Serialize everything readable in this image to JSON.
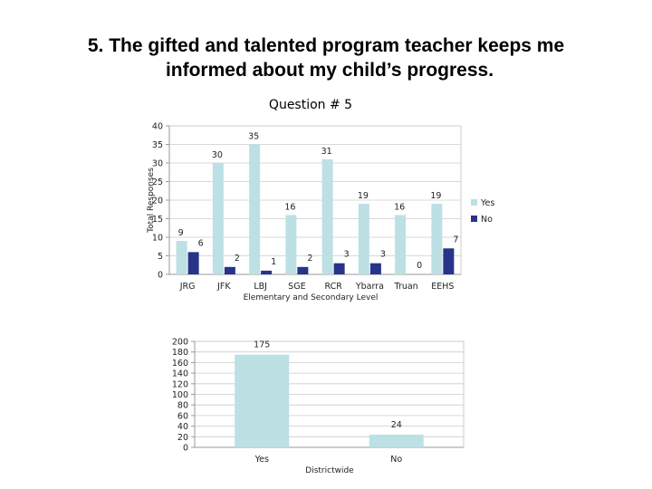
{
  "slide": {
    "title_line1": "5. The gifted and talented program teacher keeps me",
    "title_line2": "informed about my child’s progress."
  },
  "colors": {
    "yes": "#bce0e4",
    "no": "#28338a",
    "axis": "#999999",
    "grid": "#cccccc"
  },
  "chart_data": [
    {
      "type": "bar",
      "title": "Question # 5",
      "xlabel": "Elementary and Secondary Level",
      "ylabel": "Total Responses",
      "categories": [
        "JRG",
        "JFK",
        "LBJ",
        "SGE",
        "RCR",
        "Ybarra",
        "Truan",
        "EEHS"
      ],
      "series": [
        {
          "name": "Yes",
          "values": [
            9,
            30,
            35,
            16,
            31,
            19,
            16,
            19
          ]
        },
        {
          "name": "No",
          "values": [
            6,
            2,
            1,
            2,
            3,
            3,
            0,
            7
          ]
        }
      ],
      "ylim": [
        0,
        40
      ],
      "yticks": [
        0,
        5,
        10,
        15,
        20,
        25,
        30,
        35,
        40
      ],
      "grid": true,
      "legend": "right"
    },
    {
      "type": "bar",
      "title": "",
      "xlabel": "Districtwide",
      "ylabel": "",
      "categories": [
        "Yes",
        "No"
      ],
      "values": [
        175,
        24
      ],
      "ylim": [
        0,
        200
      ],
      "yticks": [
        0,
        20,
        40,
        60,
        80,
        100,
        120,
        140,
        160,
        180,
        200
      ],
      "grid": true,
      "legend": "none"
    }
  ]
}
